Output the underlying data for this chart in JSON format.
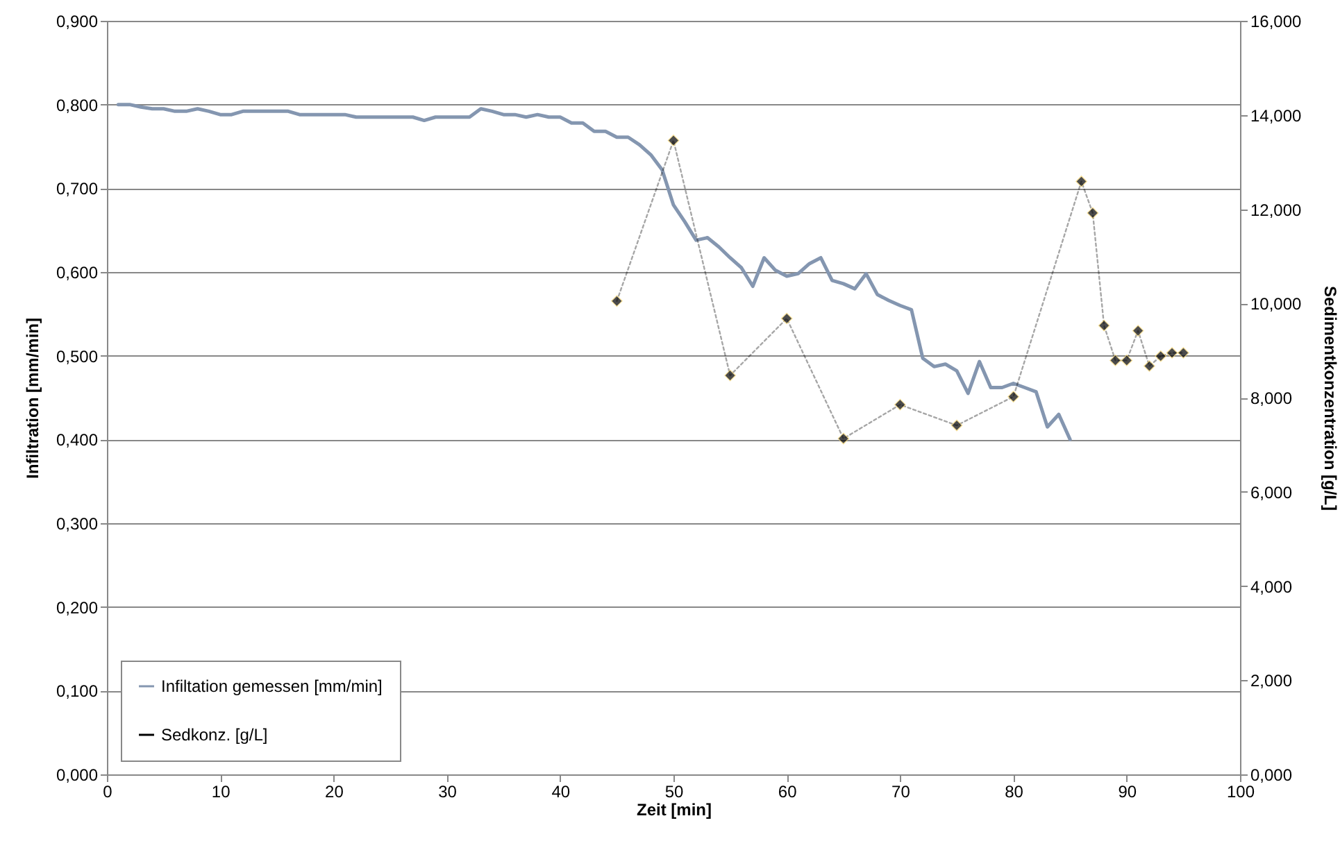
{
  "chart_data": {
    "type": "line",
    "xlabel": "Zeit [min]",
    "ylabel": "Infiltration [mm/min]",
    "y2label": "Sedimentkonzentration [g/L]",
    "xlim": [
      0,
      100
    ],
    "xticks": [
      0,
      10,
      20,
      30,
      40,
      50,
      60,
      70,
      80,
      90,
      100
    ],
    "ylim": [
      0,
      0.9
    ],
    "yticks": [
      {
        "value": 0,
        "label": "0,000"
      },
      {
        "value": 0.1,
        "label": "0,100"
      },
      {
        "value": 0.2,
        "label": "0,200"
      },
      {
        "value": 0.3,
        "label": "0,300"
      },
      {
        "value": 0.4,
        "label": "0,400"
      },
      {
        "value": 0.5,
        "label": "0,500"
      },
      {
        "value": 0.6,
        "label": "0,600"
      },
      {
        "value": 0.7,
        "label": "0,700"
      },
      {
        "value": 0.8,
        "label": "0,800"
      },
      {
        "value": 0.9,
        "label": "0,900"
      }
    ],
    "y2lim": [
      0,
      16
    ],
    "y2ticks": [
      {
        "value": 0,
        "label": "0,000"
      },
      {
        "value": 2,
        "label": "2,000"
      },
      {
        "value": 4,
        "label": "4,000"
      },
      {
        "value": 6,
        "label": "6,000"
      },
      {
        "value": 8,
        "label": "8,000"
      },
      {
        "value": 10,
        "label": "10,000"
      },
      {
        "value": 12,
        "label": "12,000"
      },
      {
        "value": 14,
        "label": "14,000"
      },
      {
        "value": 16,
        "label": "16,000"
      }
    ],
    "grid": "y",
    "legend": "bottom left",
    "series": [
      {
        "name": "Infiltation gemessen [mm/min]",
        "color": "#8496b0",
        "marker": "none",
        "line_style": "solid",
        "x": [
          1,
          2,
          3,
          4,
          5,
          6,
          7,
          8,
          9,
          10,
          11,
          12,
          13,
          14,
          15,
          16,
          17,
          18,
          19,
          20,
          21,
          22,
          23,
          24,
          25,
          26,
          27,
          28,
          29,
          30,
          31,
          32,
          33,
          34,
          35,
          36,
          37,
          38,
          39,
          40,
          41,
          42,
          43,
          44,
          45,
          46,
          47,
          48,
          49,
          50,
          51,
          52,
          53,
          54,
          55,
          56,
          57,
          58,
          59,
          60,
          61,
          62,
          63,
          64,
          65,
          66,
          67,
          68,
          69,
          70,
          71,
          72,
          73,
          74,
          75,
          76,
          77,
          78,
          79,
          80,
          81,
          82,
          83,
          84,
          85
        ],
        "values": [
          0.8,
          0.8,
          0.797,
          0.795,
          0.795,
          0.792,
          0.792,
          0.795,
          0.792,
          0.788,
          0.788,
          0.792,
          0.792,
          0.792,
          0.792,
          0.792,
          0.788,
          0.788,
          0.788,
          0.788,
          0.788,
          0.785,
          0.785,
          0.785,
          0.785,
          0.785,
          0.785,
          0.781,
          0.785,
          0.785,
          0.785,
          0.785,
          0.795,
          0.792,
          0.788,
          0.788,
          0.785,
          0.788,
          0.785,
          0.785,
          0.778,
          0.778,
          0.768,
          0.768,
          0.761,
          0.761,
          0.752,
          0.74,
          0.722,
          0.68,
          0.66,
          0.638,
          0.641,
          0.63,
          0.617,
          0.605,
          0.583,
          0.617,
          0.602,
          0.595,
          0.598,
          0.61,
          0.617,
          0.59,
          0.586,
          0.58,
          0.598,
          0.573,
          0.566,
          0.56,
          0.555,
          0.497,
          0.487,
          0.49,
          0.482,
          0.455,
          0.493,
          0.462,
          0.462,
          0.467,
          0.462,
          0.457,
          0.415,
          0.43,
          0.4
        ]
      },
      {
        "name": "Sedkonz. [g/L]",
        "color": "#000000",
        "marker": "diamond",
        "line_style": "dotted",
        "axis": "y2",
        "x": [
          45,
          50,
          55,
          60,
          65,
          70,
          75,
          80,
          86,
          87,
          88,
          89,
          90,
          91,
          92,
          93,
          94,
          95
        ],
        "values": [
          10.05,
          13.46,
          8.47,
          9.68,
          7.13,
          7.85,
          7.41,
          8.02,
          12.59,
          11.92,
          9.53,
          8.79,
          8.79,
          9.42,
          8.67,
          8.88,
          8.95,
          8.95
        ]
      }
    ]
  }
}
